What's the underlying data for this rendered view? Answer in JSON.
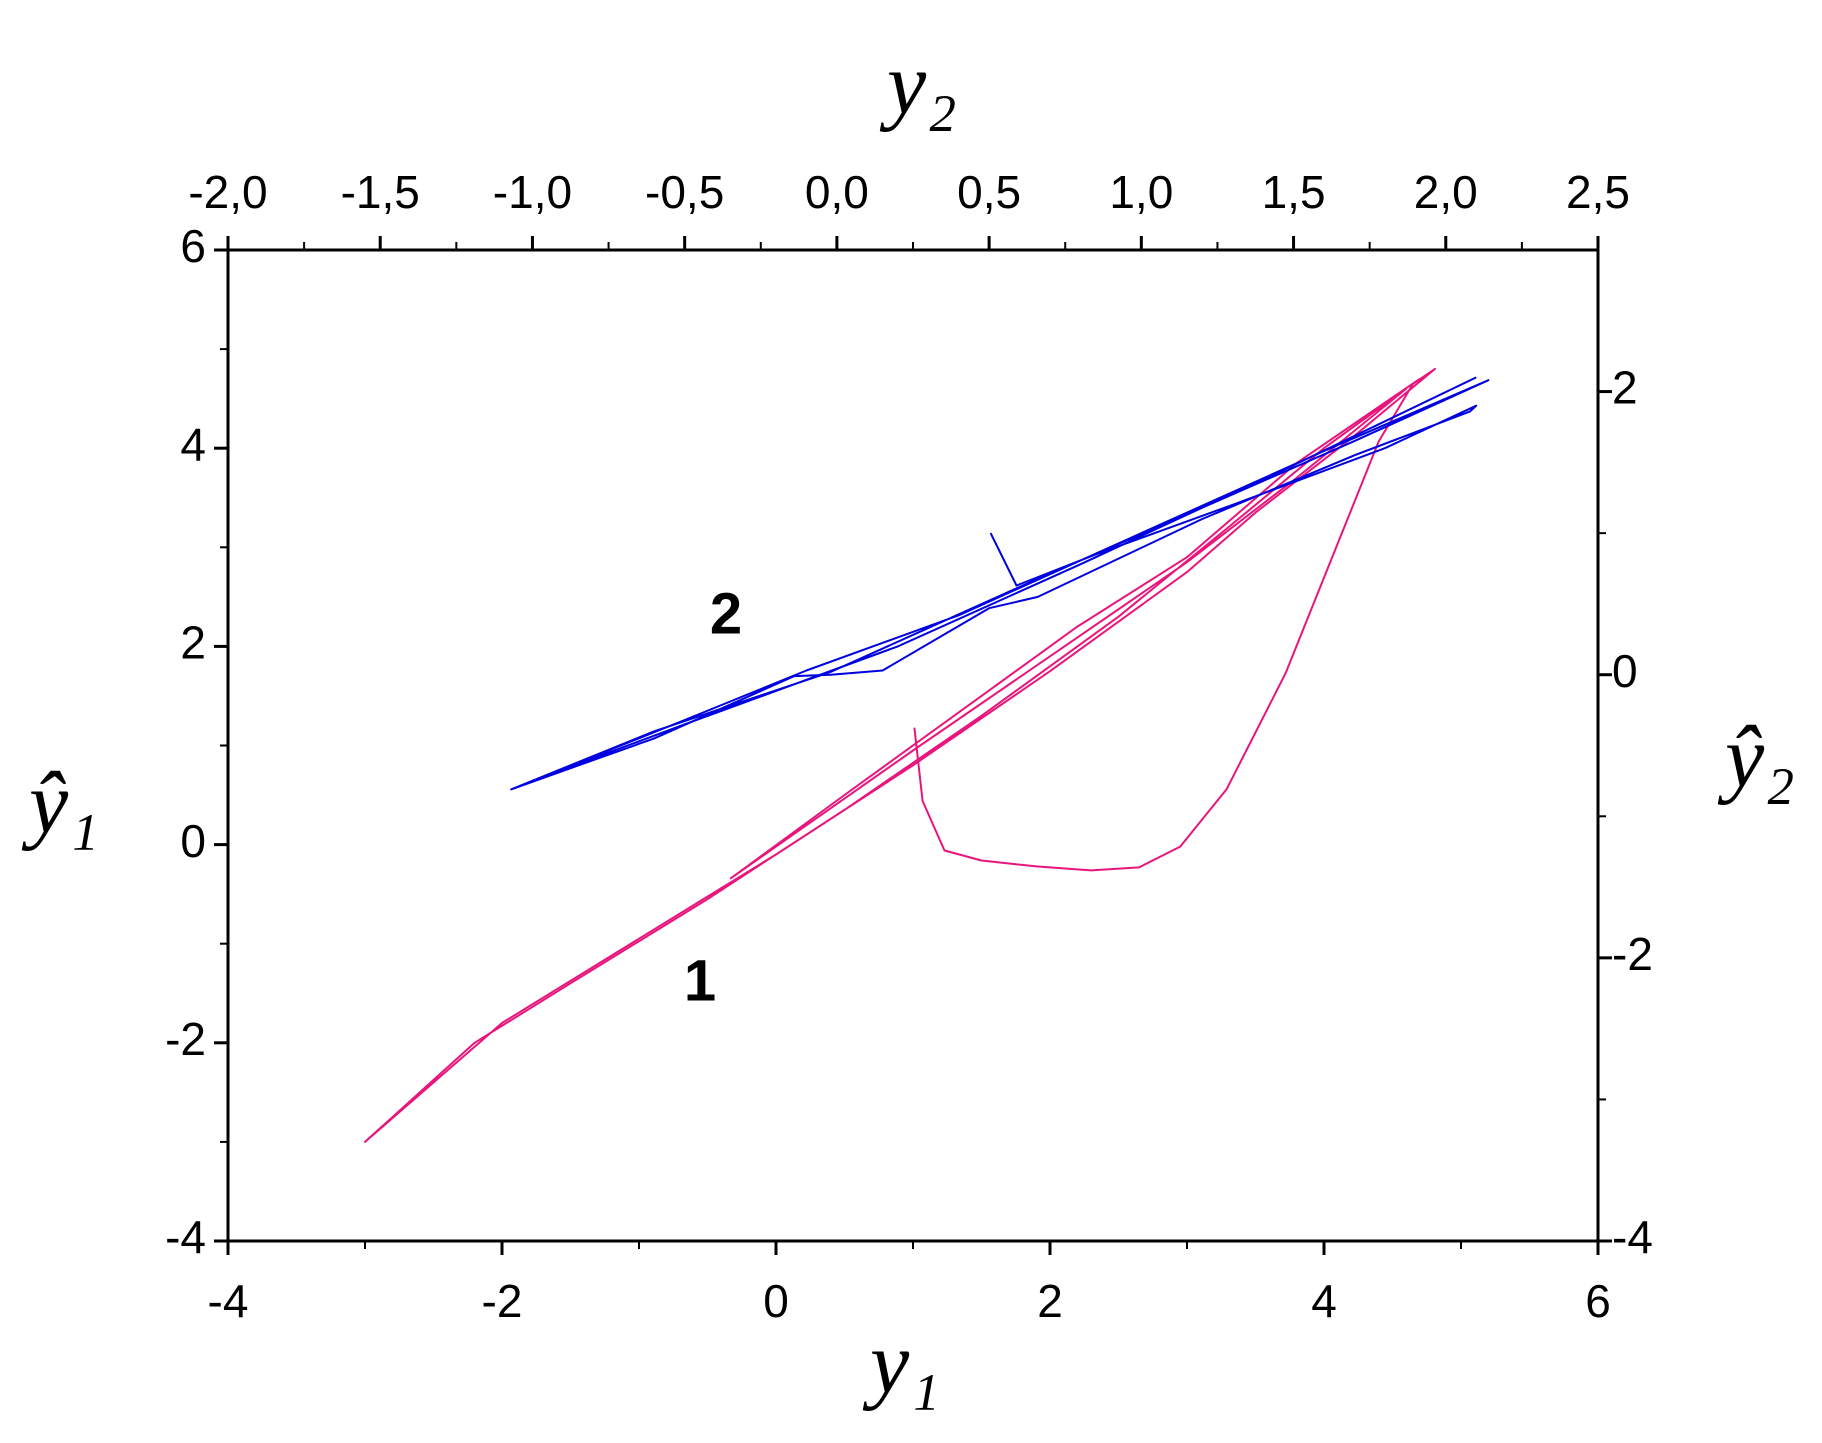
{
  "chart_data": {
    "type": "line",
    "xlabel": "y₁",
    "ylabel": "ŷ₁",
    "x2label": "y₂",
    "y2label": "ŷ₂",
    "xlim": [
      -4,
      6
    ],
    "xticks": [
      -4,
      -2,
      0,
      2,
      4,
      6
    ],
    "ylim": [
      -4,
      6
    ],
    "yticks": [
      -4,
      -2,
      0,
      2,
      4,
      6
    ],
    "x2lim": [
      -2,
      2.5
    ],
    "x2ticks": [
      {
        "value": -2,
        "label": "-2,0"
      },
      {
        "value": -1.5,
        "label": "-1,5"
      },
      {
        "value": -1,
        "label": "-1,0"
      },
      {
        "value": -0.5,
        "label": "-0,5"
      },
      {
        "value": 0,
        "label": "0,0"
      },
      {
        "value": 0.5,
        "label": "0,5"
      },
      {
        "value": 1,
        "label": "1,0"
      },
      {
        "value": 1.5,
        "label": "1,5"
      },
      {
        "value": 2,
        "label": "2,0"
      },
      {
        "value": 2.5,
        "label": "2,5"
      }
    ],
    "y2lim": [
      -4,
      3
    ],
    "y2ticks": [
      -4,
      -2,
      0,
      2
    ],
    "series": [
      {
        "name": "1",
        "color": "#e8157c",
        "x": [
          1.01,
          1.07,
          1.23,
          1.5,
          1.9,
          2.3,
          2.65,
          2.95,
          3.29,
          3.72,
          4.06,
          4.4,
          4.65,
          4.81,
          4.2,
          3.5,
          3.0,
          2.0,
          1.0,
          0,
          -1,
          -2,
          -3,
          -2.2,
          -1.5,
          -0.5,
          0.5,
          1.5,
          2.5,
          3.3,
          4.0,
          4.6,
          3.8,
          3.0,
          2.0,
          1.0,
          -0.33,
          0.5,
          1.5,
          2.2,
          3.0,
          3.8,
          4.7
        ],
        "values": [
          1.18,
          0.44,
          -0.06,
          -0.16,
          -0.22,
          -0.26,
          -0.23,
          -0.02,
          0.56,
          1.73,
          2.9,
          4.07,
          4.65,
          4.8,
          4.1,
          3.35,
          2.75,
          1.75,
          0.8,
          -0.1,
          -0.95,
          -1.8,
          -3,
          -2.0,
          -1.4,
          -0.55,
          0.35,
          1.3,
          2.3,
          3.2,
          4.0,
          4.6,
          3.7,
          2.85,
          1.9,
          0.95,
          -0.34,
          0.5,
          1.5,
          2.2,
          2.9,
          3.85,
          4.7
        ]
      },
      {
        "name": "2",
        "color": "#0000e0",
        "axis": "y2",
        "x": [
          0.505,
          0.59,
          0.85,
          1.3,
          1.8,
          2.1,
          2.08,
          1.7,
          1.2,
          0.66,
          0.5,
          0.15,
          -0.02,
          -0.14,
          -0.6,
          -1.07,
          -0.6,
          -0.02,
          0.6,
          1.2,
          1.7,
          2.14,
          1.6,
          1.0,
          0.4,
          -0.1,
          -0.5,
          -1.0,
          -0.5,
          0.2,
          0.8,
          1.5,
          2.1
        ],
        "values": [
          1.0,
          0.63,
          0.85,
          1.2,
          1.6,
          1.9,
          1.86,
          1.55,
          1.1,
          0.55,
          0.47,
          0.03,
          0.0,
          -0.01,
          -0.45,
          -0.81,
          -0.4,
          0.02,
          0.62,
          1.18,
          1.65,
          2.08,
          1.58,
          1.0,
          0.42,
          0.03,
          -0.32,
          -0.75,
          -0.35,
          0.2,
          0.78,
          1.48,
          2.1
        ]
      }
    ]
  }
}
